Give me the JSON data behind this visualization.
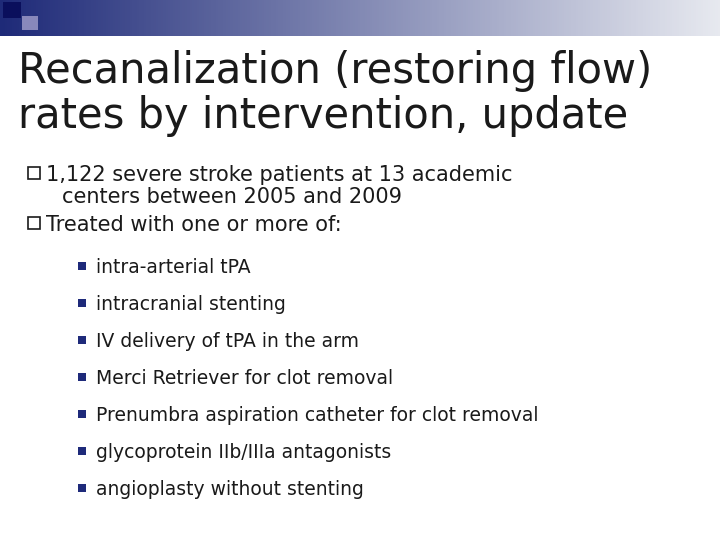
{
  "title_line1": "Recanalization (restoring flow)",
  "title_line2": "rates by intervention, update",
  "bullet1_text1": "1,122 severe stroke patients at 13 academic",
  "bullet1_text2": "centers between 2005 and 2009",
  "bullet2_text": "Treated with one or more of:",
  "sub_bullets": [
    "intra-arterial tPA",
    "intracranial stenting",
    "IV delivery of tPA in the arm",
    "Merci Retriever for clot removal",
    "Prenumbra aspiration catheter for clot removal",
    "glycoprotein IIb/IIIa antagonists",
    "angioplasty without stenting"
  ],
  "bg_color": "#ffffff",
  "text_color": "#1a1a1a",
  "title_fontsize": 30,
  "bullet_fontsize": 15,
  "sub_fontsize": 13.5,
  "bullet_color": "#1e2a7a",
  "header_gradient_left": "#1e2a78",
  "header_gradient_right": "#e8eaf0",
  "header_sq1_color": "#0a0f5c",
  "header_sq2_color": "#8888bb"
}
